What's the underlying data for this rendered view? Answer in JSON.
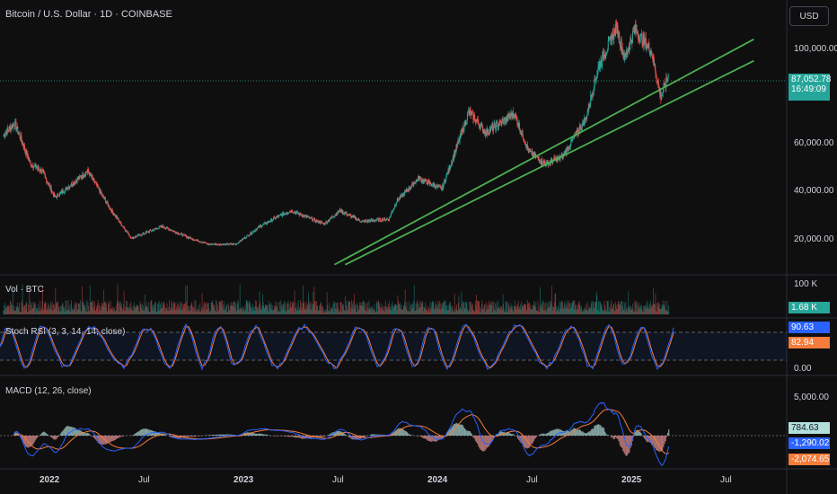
{
  "header": {
    "title": "Bitcoin / U.S. Dollar · 1D · COINBASE",
    "currency_button": "USD"
  },
  "price_axis": {
    "ticks": [
      "100,000.00",
      "60,000.00",
      "40,000.00",
      "20,000.00"
    ],
    "last_price": "87,052.78",
    "countdown": "16:49:09",
    "last_price_color": "#26a69a"
  },
  "volume": {
    "label": "Vol · BTC",
    "tick": "100 K",
    "last_value": "1.68 K"
  },
  "stoch_rsi": {
    "label": "Stoch RSI (3, 3, 14, 14, close)",
    "k_value": "90.63",
    "d_value": "82.94",
    "axis_tick": "0.00",
    "k_color": "#2962ff",
    "d_color": "#f57c3a"
  },
  "macd": {
    "label": "MACD (12, 26, close)",
    "axis_tick": "5,000.00",
    "histogram_value": "784.63",
    "macd_value": "-1,290.02",
    "signal_value": "-2,074.65"
  },
  "time_axis": {
    "labels": [
      "2022",
      "Jul",
      "2023",
      "Jul",
      "2024",
      "Jul",
      "2025",
      "Jul"
    ]
  },
  "colors": {
    "up": "#26a69a",
    "down": "#ef5350",
    "trendline": "#4caf50",
    "background": "#0f0f10"
  },
  "chart_data": {
    "type": "candlestick",
    "title": "Bitcoin / U.S. Dollar · 1D · COINBASE",
    "x_range": [
      "2021-10",
      "2025-09"
    ],
    "ylim": [
      5000,
      118000
    ],
    "close_anchor_points": [
      [
        "2021-10-20",
        62000
      ],
      [
        "2021-11-10",
        67000
      ],
      [
        "2021-12-10",
        50000
      ],
      [
        "2022-01-01",
        47000
      ],
      [
        "2022-01-25",
        36000
      ],
      [
        "2022-03-28",
        47000
      ],
      [
        "2022-05-10",
        31000
      ],
      [
        "2022-06-18",
        19000
      ],
      [
        "2022-08-15",
        24000
      ],
      [
        "2022-10-01",
        19500
      ],
      [
        "2022-11-10",
        16500
      ],
      [
        "2022-12-31",
        16500
      ],
      [
        "2023-02-15",
        24000
      ],
      [
        "2023-03-20",
        28000
      ],
      [
        "2023-04-14",
        30500
      ],
      [
        "2023-06-15",
        25000
      ],
      [
        "2023-07-15",
        30500
      ],
      [
        "2023-08-25",
        26000
      ],
      [
        "2023-10-15",
        27000
      ],
      [
        "2023-10-30",
        34500
      ],
      [
        "2023-12-10",
        44000
      ],
      [
        "2024-01-23",
        39500
      ],
      [
        "2024-02-28",
        62000
      ],
      [
        "2024-03-14",
        72000
      ],
      [
        "2024-04-15",
        63000
      ],
      [
        "2024-06-07",
        71000
      ],
      [
        "2024-07-05",
        55000
      ],
      [
        "2024-08-05",
        50000
      ],
      [
        "2024-09-06",
        53000
      ],
      [
        "2024-10-20",
        69000
      ],
      [
        "2024-11-12",
        90000
      ],
      [
        "2024-12-17",
        107000
      ],
      [
        "2025-01-01",
        94000
      ],
      [
        "2025-01-20",
        106000
      ],
      [
        "2025-02-20",
        97000
      ],
      [
        "2025-03-10",
        78000
      ],
      [
        "2025-03-25",
        87052.78
      ]
    ],
    "trendlines": [
      {
        "from": [
          "2023-07-05",
          8000
        ],
        "to": [
          "2025-09-01",
          102000
        ]
      },
      {
        "from": [
          "2023-07-25",
          8000
        ],
        "to": [
          "2025-09-01",
          93000
        ]
      }
    ],
    "stoch_rsi_levels": [
      80,
      20
    ],
    "macd_zero": 0
  }
}
